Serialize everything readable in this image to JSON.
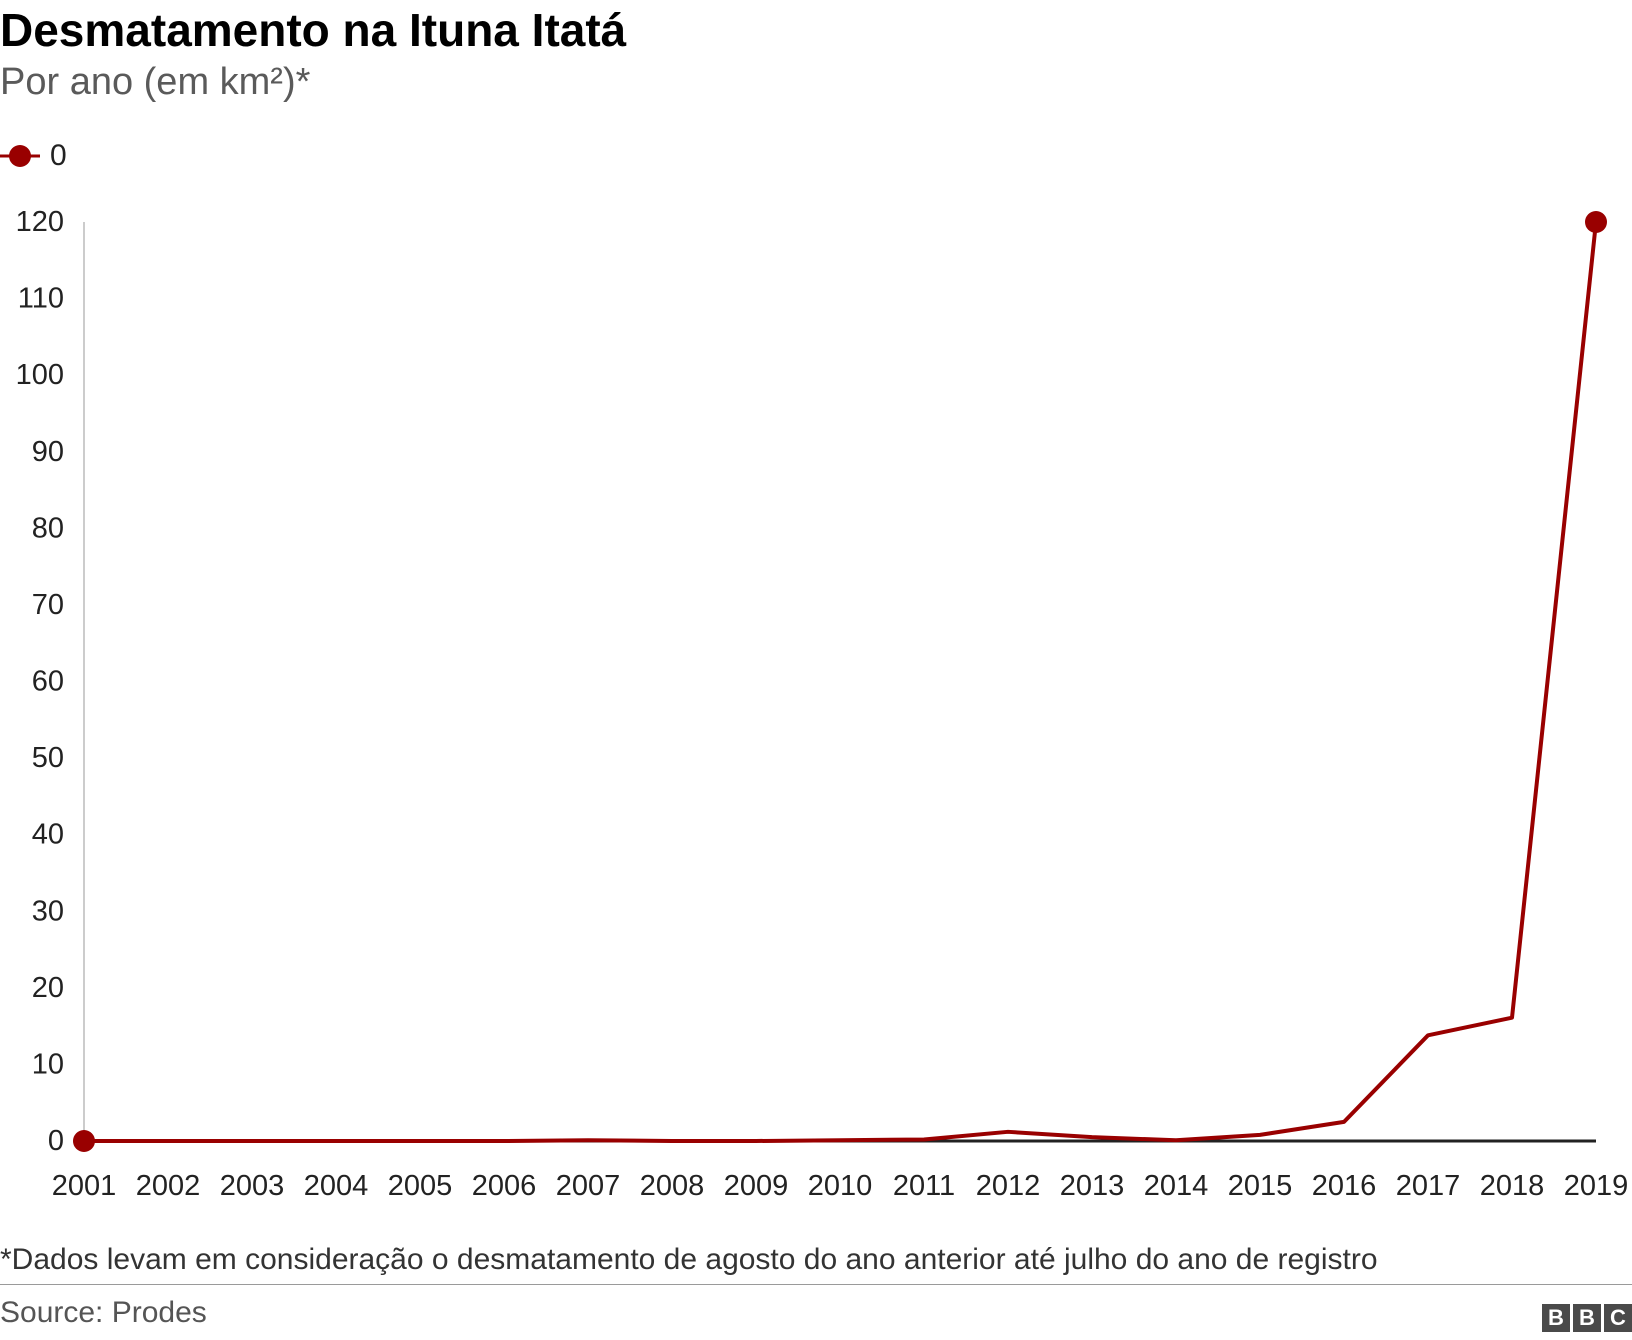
{
  "chart_data": {
    "type": "line",
    "title": "Desmatamento na Ituna Itatá",
    "subtitle": "Por ano (em km²)*",
    "x": [
      "2001",
      "2002",
      "2003",
      "2004",
      "2005",
      "2006",
      "2007",
      "2008",
      "2009",
      "2010",
      "2011",
      "2012",
      "2013",
      "2014",
      "2015",
      "2016",
      "2017",
      "2018",
      "2019"
    ],
    "series": [
      {
        "name": "0",
        "color": "#990000",
        "values": [
          0,
          0,
          0,
          0,
          0,
          0,
          0.1,
          0,
          0,
          0.1,
          0.2,
          1.2,
          0.5,
          0.1,
          0.8,
          2.5,
          13.8,
          16.1,
          120
        ]
      }
    ],
    "yticks": [
      0,
      10,
      20,
      30,
      40,
      50,
      60,
      70,
      80,
      90,
      100,
      110,
      120
    ],
    "ylim": [
      0,
      120
    ],
    "grid": false,
    "legend_position": "top-left",
    "markers_on": [
      "first",
      "last"
    ],
    "footnote": "*Dados levam em consideração o desmatamento de agosto do ano anterior até julho do ano de registro",
    "source": "Source: Prodes"
  },
  "branding": {
    "logo_letters": [
      "B",
      "B",
      "C"
    ],
    "logo_color": "#4a4a4a"
  }
}
